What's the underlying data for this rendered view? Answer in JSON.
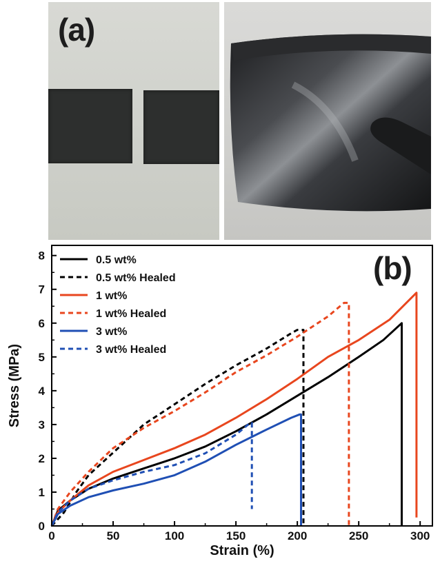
{
  "panels": {
    "a_label": "(a)",
    "b_label": "(b)"
  },
  "chart_data": {
    "type": "line",
    "xlabel": "Strain (%)",
    "ylabel": "Stress (MPa)",
    "xlim": [
      0,
      310
    ],
    "ylim": [
      0,
      8.3
    ],
    "xticks": [
      0,
      50,
      100,
      150,
      200,
      250,
      300
    ],
    "yticks": [
      0,
      1,
      2,
      3,
      4,
      5,
      6,
      7,
      8
    ],
    "legend_position": "top-left",
    "series": [
      {
        "name": "0.5 wt%",
        "color": "#000000",
        "dashed": false,
        "x": [
          0,
          5,
          15,
          30,
          50,
          75,
          100,
          125,
          150,
          175,
          200,
          225,
          250,
          270,
          285,
          285
        ],
        "y": [
          0,
          0.45,
          0.75,
          1.1,
          1.4,
          1.7,
          2.0,
          2.35,
          2.8,
          3.3,
          3.85,
          4.4,
          5.0,
          5.5,
          6.0,
          0
        ]
      },
      {
        "name": "0.5 wt% Healed",
        "color": "#000000",
        "dashed": true,
        "x": [
          0,
          5,
          10,
          20,
          30,
          45,
          60,
          75,
          100,
          125,
          150,
          175,
          195,
          200,
          205,
          205
        ],
        "y": [
          0,
          0.2,
          0.4,
          1.0,
          1.5,
          2.0,
          2.5,
          3.0,
          3.6,
          4.2,
          4.75,
          5.25,
          5.7,
          5.8,
          5.8,
          0
        ]
      },
      {
        "name": "1 wt%",
        "color": "#e8461e",
        "dashed": false,
        "x": [
          0,
          5,
          15,
          30,
          50,
          75,
          100,
          125,
          150,
          175,
          200,
          225,
          250,
          275,
          297,
          297
        ],
        "y": [
          0,
          0.4,
          0.75,
          1.2,
          1.6,
          1.95,
          2.3,
          2.7,
          3.2,
          3.75,
          4.35,
          5.0,
          5.5,
          6.1,
          6.9,
          0.25
        ]
      },
      {
        "name": "1 wt% Healed",
        "color": "#e8461e",
        "dashed": true,
        "x": [
          0,
          5,
          15,
          30,
          50,
          75,
          100,
          125,
          150,
          175,
          200,
          225,
          238,
          242,
          242
        ],
        "y": [
          0,
          0.5,
          1.0,
          1.6,
          2.3,
          2.9,
          3.4,
          3.95,
          4.55,
          5.05,
          5.6,
          6.2,
          6.6,
          6.6,
          0
        ]
      },
      {
        "name": "3 wt%",
        "color": "#1f4fb4",
        "dashed": false,
        "x": [
          0,
          5,
          15,
          30,
          50,
          75,
          100,
          125,
          150,
          175,
          195,
          202,
          203,
          203
        ],
        "y": [
          0,
          0.35,
          0.6,
          0.85,
          1.05,
          1.25,
          1.5,
          1.9,
          2.4,
          2.85,
          3.2,
          3.3,
          3.3,
          0
        ]
      },
      {
        "name": "3 wt% Healed",
        "color": "#1f4fb4",
        "dashed": true,
        "x": [
          0,
          5,
          15,
          30,
          50,
          75,
          100,
          125,
          150,
          160,
          163,
          163
        ],
        "y": [
          0,
          0.4,
          0.75,
          1.1,
          1.35,
          1.6,
          1.8,
          2.15,
          2.7,
          3.0,
          3.05,
          0.5
        ]
      }
    ]
  }
}
